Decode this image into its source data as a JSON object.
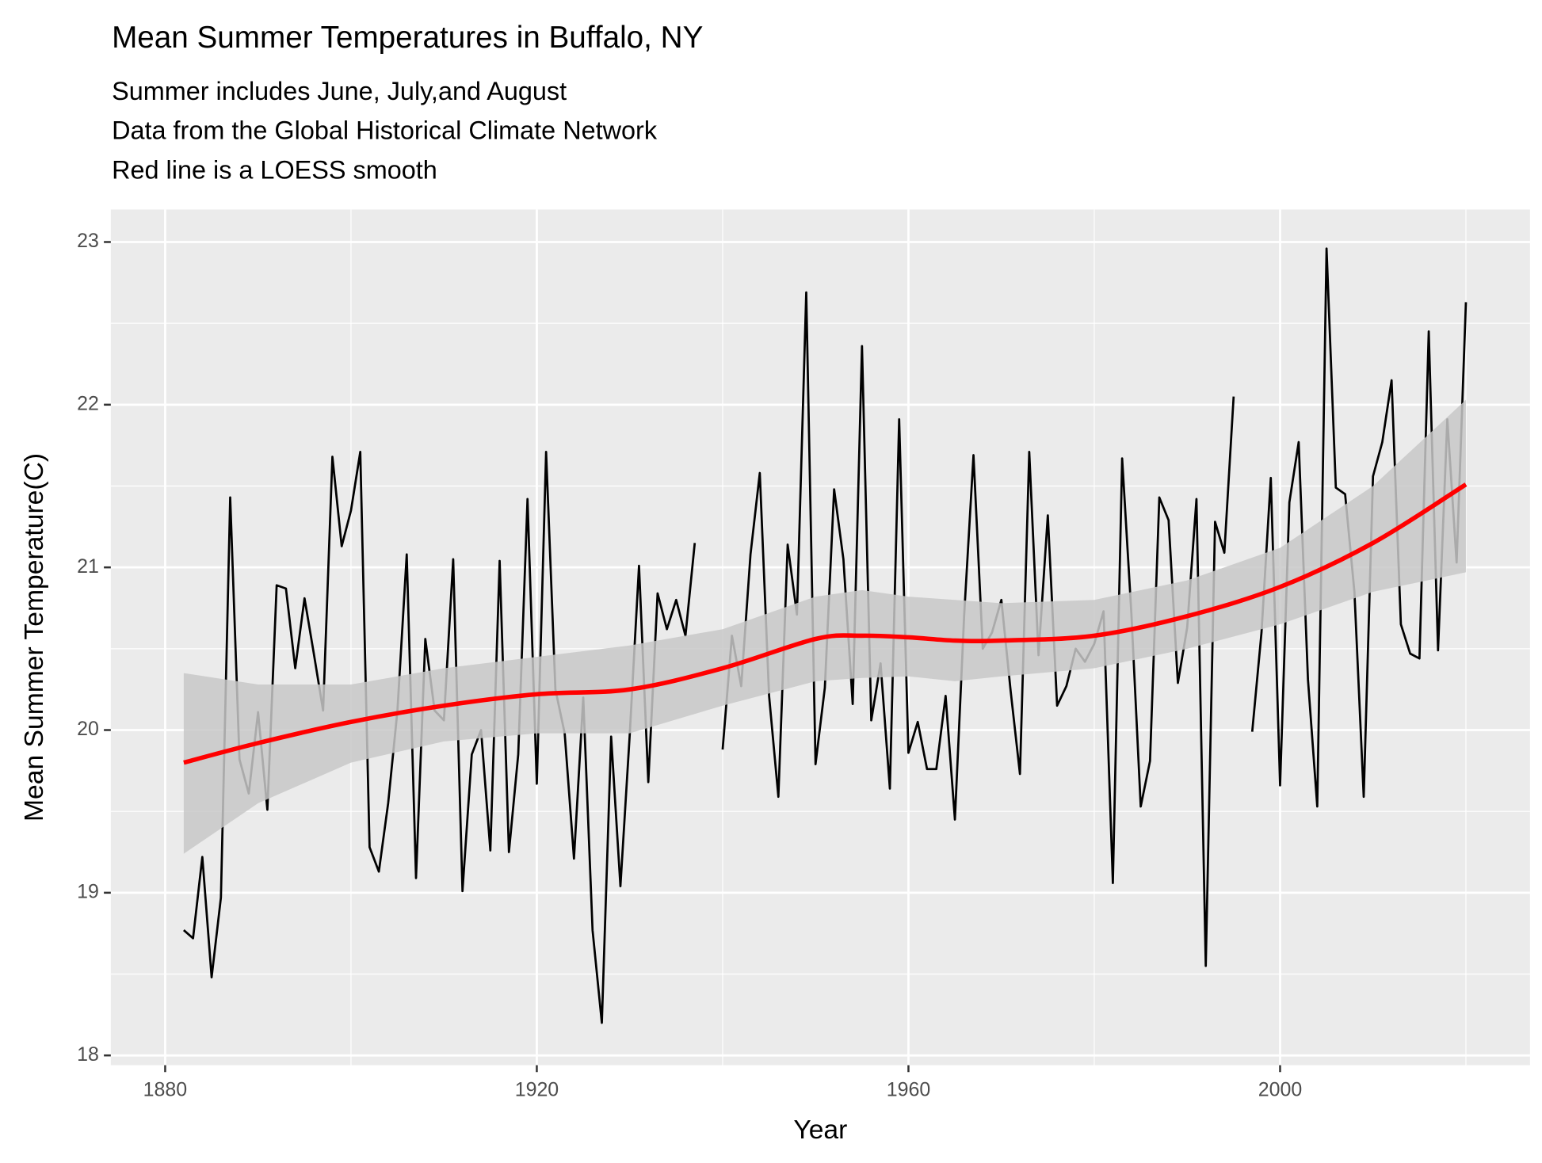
{
  "chart_data": {
    "type": "line",
    "title": "Mean Summer Temperatures in Buffalo, NY",
    "subtitle": [
      "Summer includes June, July,and August",
      "Data from the Global Historical Climate Network",
      "Red line is a LOESS smooth"
    ],
    "x_label": "Year",
    "y_label": "Mean Summer Temperature(C)",
    "xlim": [
      1874.15,
      2026.9
    ],
    "ylim": [
      17.94,
      23.2
    ],
    "xticks": [
      1880,
      1920,
      1960,
      2000
    ],
    "yticks": [
      18,
      19,
      20,
      21,
      22,
      23
    ],
    "grid": true,
    "minor_grid": true,
    "background": "#ebebeb",
    "x": [
      1882,
      1883,
      1884,
      1885,
      1886,
      1887,
      1888,
      1889,
      1890,
      1891,
      1892,
      1893,
      1894,
      1895,
      1896,
      1897,
      1898,
      1899,
      1900,
      1901,
      1902,
      1903,
      1904,
      1905,
      1906,
      1907,
      1908,
      1909,
      1910,
      1911,
      1912,
      1913,
      1914,
      1915,
      1916,
      1917,
      1918,
      1919,
      1920,
      1921,
      1922,
      1923,
      1924,
      1925,
      1926,
      1927,
      1928,
      1929,
      1930,
      1931,
      1932,
      1933,
      1934,
      1935,
      1936,
      1937,
      1938,
      1939,
      1940,
      1941,
      1942,
      1943,
      1944,
      1945,
      1946,
      1947,
      1948,
      1949,
      1950,
      1951,
      1952,
      1953,
      1954,
      1955,
      1956,
      1957,
      1958,
      1959,
      1960,
      1961,
      1962,
      1963,
      1964,
      1965,
      1966,
      1967,
      1968,
      1969,
      1970,
      1971,
      1972,
      1973,
      1974,
      1975,
      1976,
      1977,
      1978,
      1979,
      1980,
      1981,
      1982,
      1983,
      1984,
      1985,
      1986,
      1987,
      1988,
      1989,
      1990,
      1991,
      1992,
      1993,
      1994,
      1995,
      1996,
      1997,
      1998,
      1999,
      2000,
      2001,
      2002,
      2003,
      2004,
      2005,
      2006,
      2007,
      2008,
      2009,
      2010,
      2011,
      2012,
      2013,
      2014,
      2015,
      2016,
      2017,
      2018,
      2019,
      2020
    ],
    "series": [
      {
        "color": "#000000",
        "values": [
          18.77,
          18.72,
          19.22,
          18.48,
          18.97,
          21.43,
          19.82,
          19.61,
          20.11,
          19.51,
          20.89,
          20.87,
          20.38,
          20.81,
          20.47,
          20.12,
          21.68,
          21.13,
          21.35,
          21.71,
          19.28,
          19.13,
          19.55,
          20.12,
          21.08,
          19.09,
          20.56,
          20.12,
          20.06,
          21.05,
          19.01,
          19.85,
          20.0,
          19.26,
          21.04,
          19.25,
          19.85,
          21.42,
          19.67,
          21.71,
          20.25,
          19.98,
          19.21,
          20.2,
          18.77,
          18.2,
          19.96,
          19.04,
          19.97,
          21.01,
          19.68,
          20.84,
          20.62,
          20.8,
          20.58,
          21.15,
          null,
          null,
          19.88,
          20.58,
          20.27,
          21.08,
          21.58,
          20.21,
          19.59,
          21.14,
          20.71,
          22.69,
          19.79,
          20.26,
          21.48,
          21.05,
          20.16,
          22.36,
          20.06,
          20.41,
          19.64,
          21.91,
          19.86,
          20.05,
          19.76,
          19.76,
          20.21,
          19.45,
          20.71,
          21.69,
          20.5,
          20.6,
          20.8,
          20.24,
          19.73,
          21.71,
          20.46,
          21.32,
          20.15,
          20.27,
          20.5,
          20.42,
          20.53,
          20.73,
          19.06,
          21.67,
          20.71,
          19.53,
          19.81,
          21.43,
          21.29,
          20.29,
          20.63,
          21.42,
          18.55,
          21.28,
          21.09,
          22.05,
          null,
          19.99,
          20.6,
          21.55,
          19.66,
          21.4,
          21.77,
          20.31,
          19.53,
          22.96,
          21.49,
          21.45,
          20.85,
          19.59,
          21.56,
          21.77,
          22.15,
          20.65,
          20.47,
          20.44,
          22.45,
          20.49,
          21.91,
          21.03,
          22.63
        ]
      }
    ],
    "smooth": {
      "color": "#ff0000",
      "band_color": "#c8c8c8",
      "x": [
        1882,
        1890,
        1900,
        1910,
        1920,
        1930,
        1940,
        1950,
        1955,
        1960,
        1965,
        1970,
        1980,
        1990,
        2000,
        2010,
        2020
      ],
      "values": [
        19.8,
        19.92,
        20.05,
        20.15,
        20.22,
        20.25,
        20.38,
        20.56,
        20.58,
        20.57,
        20.55,
        20.55,
        20.58,
        20.7,
        20.88,
        21.15,
        21.51
      ],
      "lower": [
        19.24,
        19.55,
        19.8,
        19.93,
        19.98,
        19.98,
        20.15,
        20.3,
        20.32,
        20.33,
        20.3,
        20.33,
        20.38,
        20.5,
        20.65,
        20.85,
        20.97
      ],
      "upper": [
        20.35,
        20.28,
        20.28,
        20.38,
        20.45,
        20.52,
        20.62,
        20.82,
        20.86,
        20.82,
        20.8,
        20.78,
        20.8,
        20.92,
        21.12,
        21.5,
        22.03
      ]
    }
  }
}
